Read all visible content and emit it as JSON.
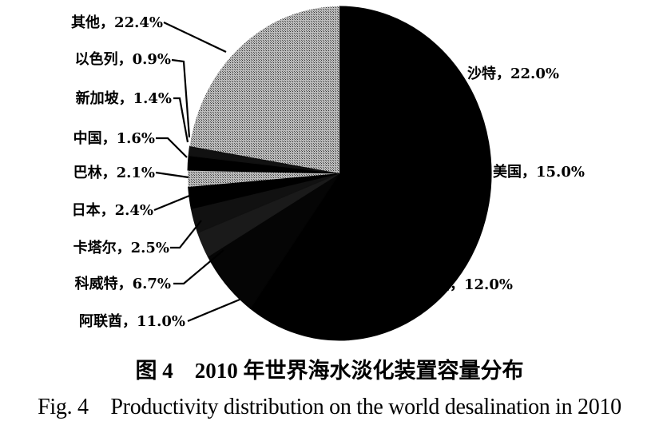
{
  "chart_data": {
    "type": "pie",
    "start": "12 o'clock, clockwise",
    "slices": [
      {
        "label": "沙特",
        "value": 22.0,
        "text": "沙特，22.0%",
        "color": "#000000"
      },
      {
        "label": "美国",
        "value": 15.0,
        "text": "美国，15.0%",
        "color": "#000000"
      },
      {
        "label": "欧洲",
        "value": 12.0,
        "text": "欧洲，12.0%",
        "color": "#000000"
      },
      {
        "label": "阿联酋",
        "value": 11.0,
        "text": "阿联酋，11.0%",
        "color": "#000000"
      },
      {
        "label": "科威特",
        "value": 6.7,
        "text": "科威特，6.7%",
        "color": "#050505"
      },
      {
        "label": "卡塔尔",
        "value": 2.5,
        "text": "卡塔尔，2.5%",
        "color": "#1a1a1a"
      },
      {
        "label": "日本",
        "value": 2.4,
        "text": "日本，2.4%",
        "color": "#111111"
      },
      {
        "label": "巴林",
        "value": 2.1,
        "text": "巴林，2.1%",
        "color": "#000000"
      },
      {
        "label": "中国",
        "value": 1.6,
        "text": "中国，1.6%",
        "color": "#9a9a9a"
      },
      {
        "label": "新加坡",
        "value": 1.4,
        "text": "新加坡，1.4%",
        "color": "#000000"
      },
      {
        "label": "以色列",
        "value": 0.9,
        "text": "以色列，0.9%",
        "color": "#111111"
      },
      {
        "label": "其他",
        "value": 22.4,
        "text": "其他，22.4%",
        "color": "#8c8c8c"
      }
    ],
    "caption_cn": "图 4　2010 年世界海水淡化装置容量分布",
    "caption_en": "Fig. 4　Productivity distribution on the world desalination in 2010"
  }
}
